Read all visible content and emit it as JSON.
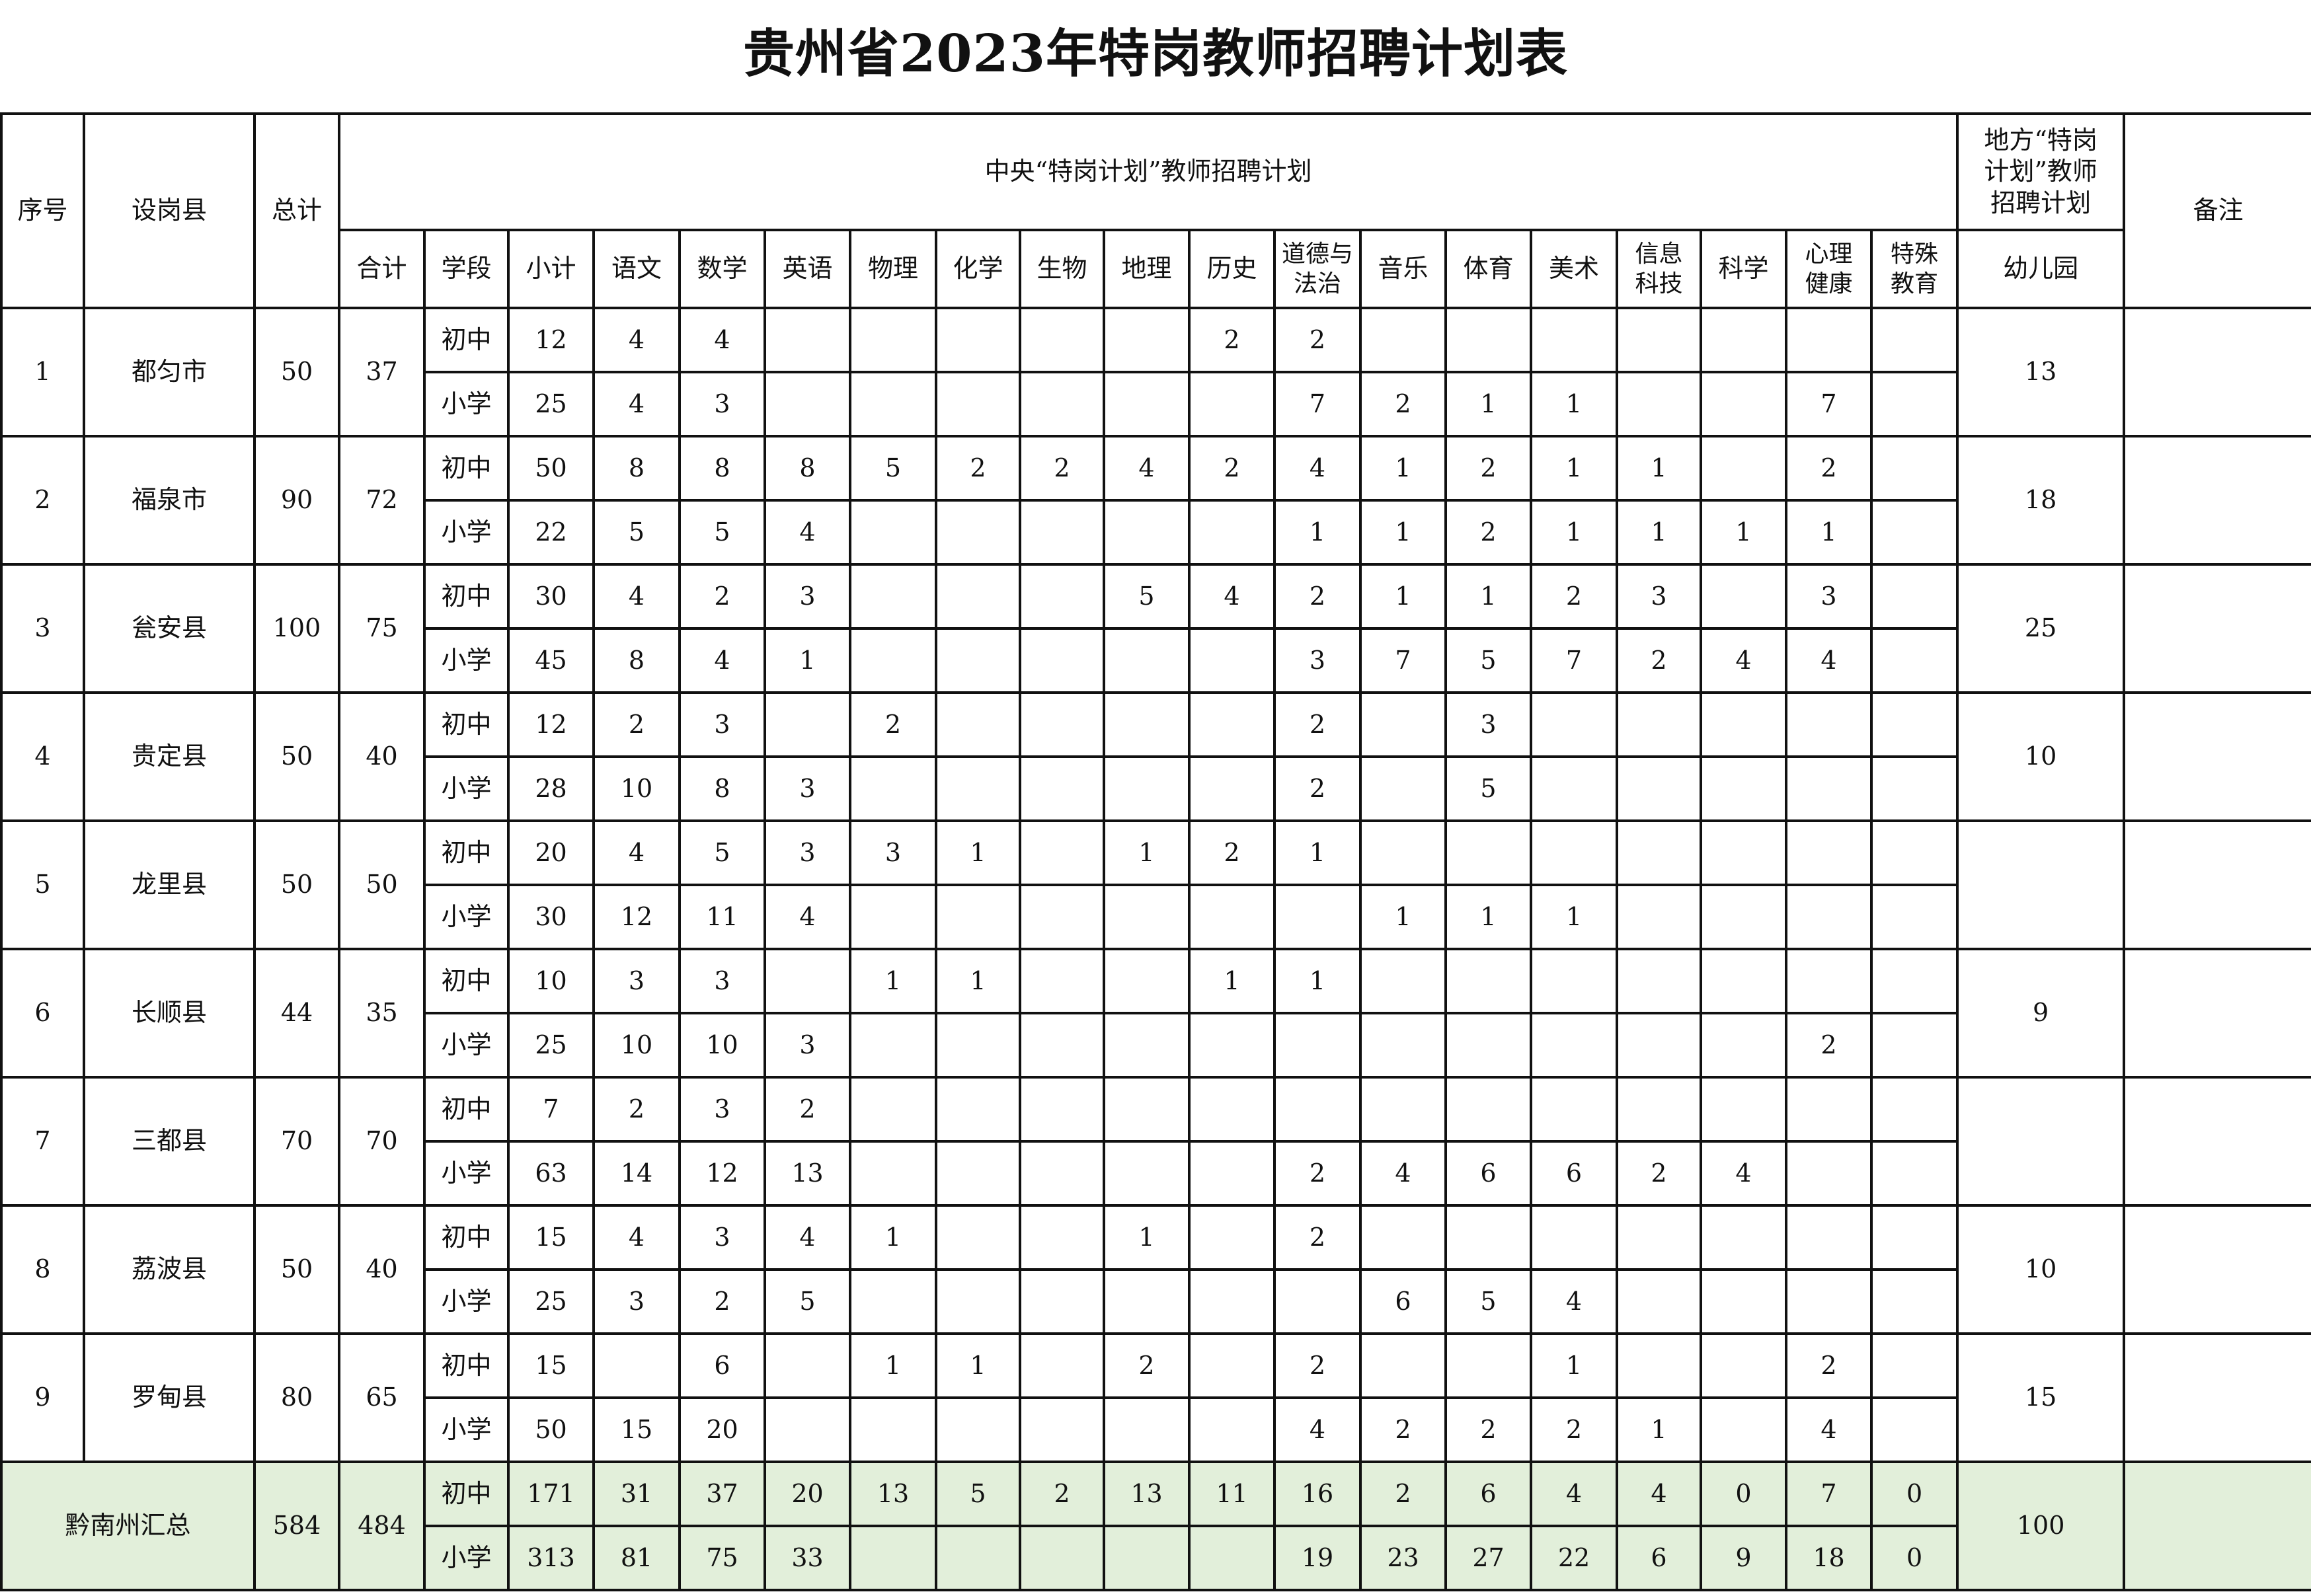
{
  "title": "贵州省2023年特岗教师招聘计划表",
  "header": {
    "no": "序号",
    "county": "设岗县",
    "total": "总计",
    "central_plan": "中央“特岗计划”教师招聘计划",
    "local_plan": "地方“特岗\n计划”教师\n招聘计划",
    "remark": "备注",
    "sum": "合计",
    "stage": "学段",
    "subtotal": "小计",
    "subjects": [
      "语文",
      "数学",
      "英语",
      "物理",
      "化学",
      "生物",
      "地理",
      "历史",
      "道德与\n法治",
      "音乐",
      "体育",
      "美术",
      "信息\n科技",
      "科学",
      "心理\n健康",
      "特殊\n教育"
    ],
    "kindergarten": "幼儿园"
  },
  "districts": [
    {
      "no": "1",
      "name": "都匀市",
      "total": "50",
      "sum": "37",
      "kindergarten": "13",
      "remark": "",
      "rows": [
        {
          "stage": "初中",
          "subtotal": "12",
          "subjects": [
            "4",
            "4",
            "",
            "",
            "",
            "",
            "",
            "2",
            "2",
            "",
            "",
            "",
            "",
            "",
            "",
            ""
          ]
        },
        {
          "stage": "小学",
          "subtotal": "25",
          "subjects": [
            "4",
            "3",
            "",
            "",
            "",
            "",
            "",
            "",
            "7",
            "2",
            "1",
            "1",
            "",
            "",
            "7",
            ""
          ]
        }
      ]
    },
    {
      "no": "2",
      "name": "福泉市",
      "total": "90",
      "sum": "72",
      "kindergarten": "18",
      "remark": "",
      "rows": [
        {
          "stage": "初中",
          "subtotal": "50",
          "subjects": [
            "8",
            "8",
            "8",
            "5",
            "2",
            "2",
            "4",
            "2",
            "4",
            "1",
            "2",
            "1",
            "1",
            "",
            "2",
            ""
          ]
        },
        {
          "stage": "小学",
          "subtotal": "22",
          "subjects": [
            "5",
            "5",
            "4",
            "",
            "",
            "",
            "",
            "",
            "1",
            "1",
            "2",
            "1",
            "1",
            "1",
            "1",
            ""
          ]
        }
      ]
    },
    {
      "no": "3",
      "name": "瓮安县",
      "total": "100",
      "sum": "75",
      "kindergarten": "25",
      "remark": "",
      "rows": [
        {
          "stage": "初中",
          "subtotal": "30",
          "subjects": [
            "4",
            "2",
            "3",
            "",
            "",
            "",
            "5",
            "4",
            "2",
            "1",
            "1",
            "2",
            "3",
            "",
            "3",
            ""
          ]
        },
        {
          "stage": "小学",
          "subtotal": "45",
          "subjects": [
            "8",
            "4",
            "1",
            "",
            "",
            "",
            "",
            "",
            "3",
            "7",
            "5",
            "7",
            "2",
            "4",
            "4",
            ""
          ]
        }
      ]
    },
    {
      "no": "4",
      "name": "贵定县",
      "total": "50",
      "sum": "40",
      "kindergarten": "10",
      "remark": "",
      "rows": [
        {
          "stage": "初中",
          "subtotal": "12",
          "subjects": [
            "2",
            "3",
            "",
            "2",
            "",
            "",
            "",
            "",
            "2",
            "",
            "3",
            "",
            "",
            "",
            "",
            ""
          ]
        },
        {
          "stage": "小学",
          "subtotal": "28",
          "subjects": [
            "10",
            "8",
            "3",
            "",
            "",
            "",
            "",
            "",
            "2",
            "",
            "5",
            "",
            "",
            "",
            "",
            ""
          ]
        }
      ]
    },
    {
      "no": "5",
      "name": "龙里县",
      "total": "50",
      "sum": "50",
      "kindergarten": "",
      "remark": "",
      "rows": [
        {
          "stage": "初中",
          "subtotal": "20",
          "subjects": [
            "4",
            "5",
            "3",
            "3",
            "1",
            "",
            "1",
            "2",
            "1",
            "",
            "",
            "",
            "",
            "",
            "",
            ""
          ]
        },
        {
          "stage": "小学",
          "subtotal": "30",
          "subjects": [
            "12",
            "11",
            "4",
            "",
            "",
            "",
            "",
            "",
            "",
            "1",
            "1",
            "1",
            "",
            "",
            "",
            ""
          ]
        }
      ]
    },
    {
      "no": "6",
      "name": "长顺县",
      "total": "44",
      "sum": "35",
      "kindergarten": "9",
      "remark": "",
      "rows": [
        {
          "stage": "初中",
          "subtotal": "10",
          "subjects": [
            "3",
            "3",
            "",
            "1",
            "1",
            "",
            "",
            "1",
            "1",
            "",
            "",
            "",
            "",
            "",
            "",
            ""
          ]
        },
        {
          "stage": "小学",
          "subtotal": "25",
          "subjects": [
            "10",
            "10",
            "3",
            "",
            "",
            "",
            "",
            "",
            "",
            "",
            "",
            "",
            "",
            "",
            "2",
            ""
          ]
        }
      ]
    },
    {
      "no": "7",
      "name": "三都县",
      "total": "70",
      "sum": "70",
      "kindergarten": "",
      "remark": "",
      "rows": [
        {
          "stage": "初中",
          "subtotal": "7",
          "subjects": [
            "2",
            "3",
            "2",
            "",
            "",
            "",
            "",
            "",
            "",
            "",
            "",
            "",
            "",
            "",
            "",
            ""
          ]
        },
        {
          "stage": "小学",
          "subtotal": "63",
          "subjects": [
            "14",
            "12",
            "13",
            "",
            "",
            "",
            "",
            "",
            "2",
            "4",
            "6",
            "6",
            "2",
            "4",
            "",
            ""
          ]
        }
      ]
    },
    {
      "no": "8",
      "name": "荔波县",
      "total": "50",
      "sum": "40",
      "kindergarten": "10",
      "remark": "",
      "rows": [
        {
          "stage": "初中",
          "subtotal": "15",
          "subjects": [
            "4",
            "3",
            "4",
            "1",
            "",
            "",
            "1",
            "",
            "2",
            "",
            "",
            "",
            "",
            "",
            "",
            ""
          ]
        },
        {
          "stage": "小学",
          "subtotal": "25",
          "subjects": [
            "3",
            "2",
            "5",
            "",
            "",
            "",
            "",
            "",
            "",
            "6",
            "5",
            "4",
            "",
            "",
            "",
            ""
          ]
        }
      ]
    },
    {
      "no": "9",
      "name": "罗甸县",
      "total": "80",
      "sum": "65",
      "kindergarten": "15",
      "remark": "",
      "rows": [
        {
          "stage": "初中",
          "subtotal": "15",
          "subjects": [
            "",
            "6",
            "",
            "1",
            "1",
            "",
            "2",
            "",
            "2",
            "",
            "",
            "1",
            "",
            "",
            "2",
            ""
          ]
        },
        {
          "stage": "小学",
          "subtotal": "50",
          "subjects": [
            "15",
            "20",
            "",
            "",
            "",
            "",
            "",
            "",
            "4",
            "2",
            "2",
            "2",
            "1",
            "",
            "4",
            ""
          ]
        }
      ]
    }
  ],
  "summary": {
    "name": "黔南州汇总",
    "total": "584",
    "sum": "484",
    "kindergarten": "100",
    "remark": "",
    "rows": [
      {
        "stage": "初中",
        "subtotal": "171",
        "subjects": [
          "31",
          "37",
          "20",
          "13",
          "5",
          "2",
          "13",
          "11",
          "16",
          "2",
          "6",
          "4",
          "4",
          "0",
          "7",
          "0"
        ]
      },
      {
        "stage": "小学",
        "subtotal": "313",
        "subjects": [
          "81",
          "75",
          "33",
          "",
          "",
          "",
          "",
          "",
          "19",
          "23",
          "27",
          "22",
          "6",
          "9",
          "18",
          "0"
        ]
      }
    ]
  },
  "colors": {
    "summary_background": "#e2efda",
    "border": "#111111"
  }
}
